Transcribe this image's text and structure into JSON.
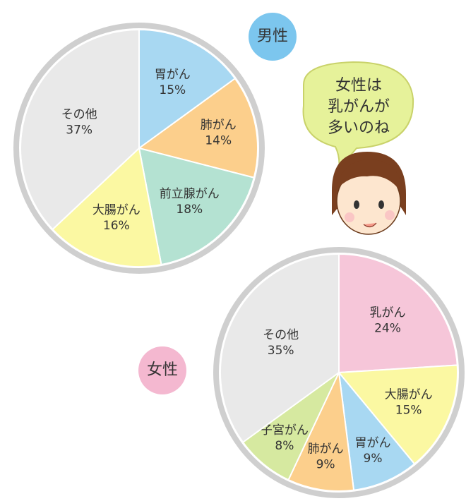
{
  "chart_data": [
    {
      "type": "pie",
      "title": "男性",
      "categories": [
        "胃がん",
        "肺がん",
        "前立腺がん",
        "大腸がん",
        "その他"
      ],
      "values": [
        15,
        14,
        18,
        16,
        37
      ],
      "value_labels": [
        "15%",
        "14%",
        "18%",
        "16%",
        "37%"
      ],
      "colors": [
        "#a8d8f2",
        "#fccf8c",
        "#b4e2d2",
        "#fbf8a2",
        "#e9e9e9"
      ],
      "title_color": "#7cc6ee"
    },
    {
      "type": "pie",
      "title": "女性",
      "categories": [
        "乳がん",
        "大腸がん",
        "胃がん",
        "肺がん",
        "子宮がん",
        "その他"
      ],
      "values": [
        24,
        15,
        9,
        9,
        8,
        35
      ],
      "value_labels": [
        "24%",
        "15%",
        "9%",
        "9%",
        "8%",
        "35%"
      ],
      "colors": [
        "#f6c6d9",
        "#fbf8a2",
        "#a8d8f2",
        "#fccf8c",
        "#d6e9a0",
        "#e9e9e9"
      ],
      "title_color": "#f4b8d0"
    }
  ],
  "bubble": {
    "lines": [
      "女性は",
      "乳がんが",
      "多いのね"
    ]
  }
}
